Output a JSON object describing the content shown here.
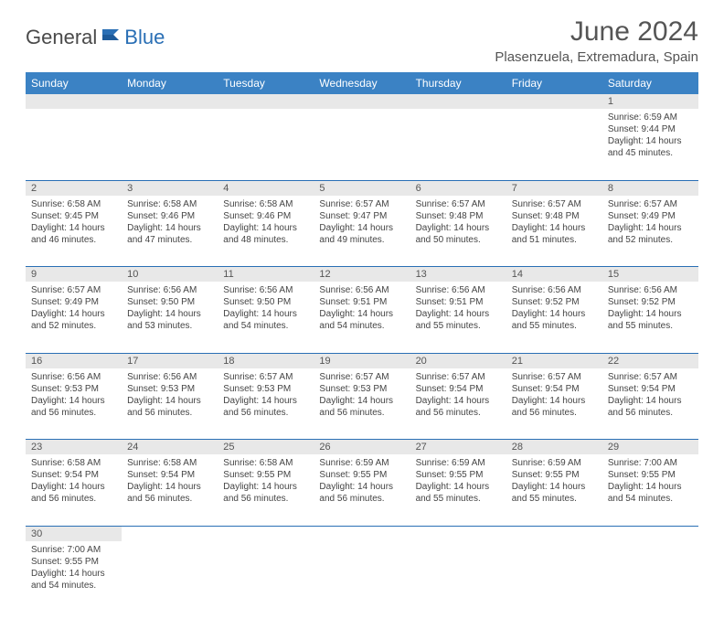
{
  "logo": {
    "text_left": "General",
    "text_right": "Blue"
  },
  "title": "June 2024",
  "location": "Plasenzuela, Extremadura, Spain",
  "colors": {
    "header_bg": "#3b82c4",
    "header_text": "#ffffff",
    "daynum_bg": "#e8e8e8",
    "border": "#2a6fb5",
    "body_text": "#444444",
    "title_text": "#555555",
    "logo_gray": "#4a4a4a",
    "logo_blue": "#2a6fb5"
  },
  "weekdays": [
    "Sunday",
    "Monday",
    "Tuesday",
    "Wednesday",
    "Thursday",
    "Friday",
    "Saturday"
  ],
  "weeks": [
    [
      null,
      null,
      null,
      null,
      null,
      null,
      {
        "n": "1",
        "sr": "6:59 AM",
        "ss": "9:44 PM",
        "dl": "14 hours and 45 minutes."
      }
    ],
    [
      {
        "n": "2",
        "sr": "6:58 AM",
        "ss": "9:45 PM",
        "dl": "14 hours and 46 minutes."
      },
      {
        "n": "3",
        "sr": "6:58 AM",
        "ss": "9:46 PM",
        "dl": "14 hours and 47 minutes."
      },
      {
        "n": "4",
        "sr": "6:58 AM",
        "ss": "9:46 PM",
        "dl": "14 hours and 48 minutes."
      },
      {
        "n": "5",
        "sr": "6:57 AM",
        "ss": "9:47 PM",
        "dl": "14 hours and 49 minutes."
      },
      {
        "n": "6",
        "sr": "6:57 AM",
        "ss": "9:48 PM",
        "dl": "14 hours and 50 minutes."
      },
      {
        "n": "7",
        "sr": "6:57 AM",
        "ss": "9:48 PM",
        "dl": "14 hours and 51 minutes."
      },
      {
        "n": "8",
        "sr": "6:57 AM",
        "ss": "9:49 PM",
        "dl": "14 hours and 52 minutes."
      }
    ],
    [
      {
        "n": "9",
        "sr": "6:57 AM",
        "ss": "9:49 PM",
        "dl": "14 hours and 52 minutes."
      },
      {
        "n": "10",
        "sr": "6:56 AM",
        "ss": "9:50 PM",
        "dl": "14 hours and 53 minutes."
      },
      {
        "n": "11",
        "sr": "6:56 AM",
        "ss": "9:50 PM",
        "dl": "14 hours and 54 minutes."
      },
      {
        "n": "12",
        "sr": "6:56 AM",
        "ss": "9:51 PM",
        "dl": "14 hours and 54 minutes."
      },
      {
        "n": "13",
        "sr": "6:56 AM",
        "ss": "9:51 PM",
        "dl": "14 hours and 55 minutes."
      },
      {
        "n": "14",
        "sr": "6:56 AM",
        "ss": "9:52 PM",
        "dl": "14 hours and 55 minutes."
      },
      {
        "n": "15",
        "sr": "6:56 AM",
        "ss": "9:52 PM",
        "dl": "14 hours and 55 minutes."
      }
    ],
    [
      {
        "n": "16",
        "sr": "6:56 AM",
        "ss": "9:53 PM",
        "dl": "14 hours and 56 minutes."
      },
      {
        "n": "17",
        "sr": "6:56 AM",
        "ss": "9:53 PM",
        "dl": "14 hours and 56 minutes."
      },
      {
        "n": "18",
        "sr": "6:57 AM",
        "ss": "9:53 PM",
        "dl": "14 hours and 56 minutes."
      },
      {
        "n": "19",
        "sr": "6:57 AM",
        "ss": "9:53 PM",
        "dl": "14 hours and 56 minutes."
      },
      {
        "n": "20",
        "sr": "6:57 AM",
        "ss": "9:54 PM",
        "dl": "14 hours and 56 minutes."
      },
      {
        "n": "21",
        "sr": "6:57 AM",
        "ss": "9:54 PM",
        "dl": "14 hours and 56 minutes."
      },
      {
        "n": "22",
        "sr": "6:57 AM",
        "ss": "9:54 PM",
        "dl": "14 hours and 56 minutes."
      }
    ],
    [
      {
        "n": "23",
        "sr": "6:58 AM",
        "ss": "9:54 PM",
        "dl": "14 hours and 56 minutes."
      },
      {
        "n": "24",
        "sr": "6:58 AM",
        "ss": "9:54 PM",
        "dl": "14 hours and 56 minutes."
      },
      {
        "n": "25",
        "sr": "6:58 AM",
        "ss": "9:55 PM",
        "dl": "14 hours and 56 minutes."
      },
      {
        "n": "26",
        "sr": "6:59 AM",
        "ss": "9:55 PM",
        "dl": "14 hours and 56 minutes."
      },
      {
        "n": "27",
        "sr": "6:59 AM",
        "ss": "9:55 PM",
        "dl": "14 hours and 55 minutes."
      },
      {
        "n": "28",
        "sr": "6:59 AM",
        "ss": "9:55 PM",
        "dl": "14 hours and 55 minutes."
      },
      {
        "n": "29",
        "sr": "7:00 AM",
        "ss": "9:55 PM",
        "dl": "14 hours and 54 minutes."
      }
    ],
    [
      {
        "n": "30",
        "sr": "7:00 AM",
        "ss": "9:55 PM",
        "dl": "14 hours and 54 minutes."
      },
      null,
      null,
      null,
      null,
      null,
      null
    ]
  ],
  "labels": {
    "sunrise": "Sunrise: ",
    "sunset": "Sunset: ",
    "daylight": "Daylight: "
  }
}
